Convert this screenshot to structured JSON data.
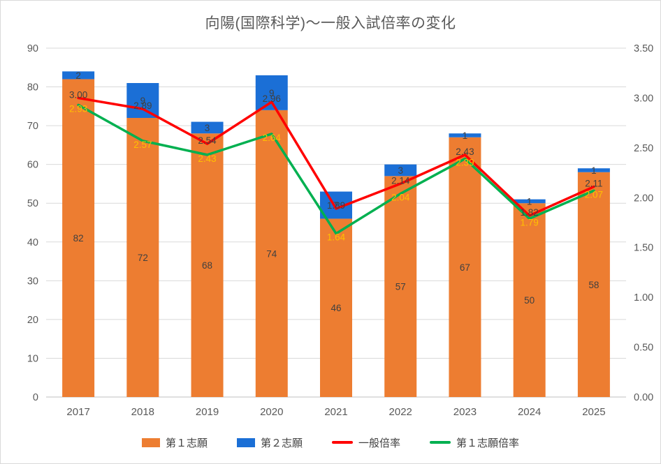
{
  "chart_data": {
    "type": "bar",
    "subtype": "stacked-bar-with-lines-combo",
    "title": "向陽(国際科学)～一般入試倍率の変化",
    "categories": [
      "2017",
      "2018",
      "2019",
      "2020",
      "2021",
      "2022",
      "2023",
      "2024",
      "2025"
    ],
    "series": [
      {
        "id": "first-choice",
        "name": "第１志願",
        "type": "bar",
        "stack": "applicants",
        "axis": "left",
        "color": "#ED7D31",
        "label_color": "#404040",
        "values": [
          82,
          72,
          68,
          74,
          46,
          57,
          67,
          50,
          58
        ]
      },
      {
        "id": "second-choice",
        "name": "第２志願",
        "type": "bar",
        "stack": "applicants",
        "axis": "left",
        "color": "#1B6FD6",
        "label_color": "#404040",
        "values": [
          2,
          9,
          3,
          9,
          7,
          3,
          1,
          1,
          1
        ]
      },
      {
        "id": "general-ratio",
        "name": "一般倍率",
        "type": "line",
        "axis": "right",
        "color": "#FF0000",
        "label_color": "#404040",
        "values": [
          3.0,
          2.89,
          2.54,
          2.96,
          1.89,
          2.14,
          2.43,
          1.82,
          2.11
        ],
        "labels": [
          "3.00",
          "2.89",
          "2.54",
          "2.96",
          "1.89",
          "2.14",
          "2.43",
          "1.82",
          "2.11"
        ]
      },
      {
        "id": "first-choice-ratio",
        "name": "第１志願倍率",
        "type": "line",
        "axis": "right",
        "color": "#00B050",
        "label_color": "#FFC000",
        "values": [
          2.93,
          2.57,
          2.43,
          2.64,
          1.64,
          2.04,
          2.39,
          1.79,
          2.07
        ],
        "labels": [
          "2.93",
          "2.57",
          "2.43",
          "2.64",
          "1.64",
          "2.04",
          "2.39",
          "1.79",
          "2.07"
        ]
      }
    ],
    "left_axis": {
      "min": 0,
      "max": 90,
      "step": 10,
      "ticks": [
        "0",
        "10",
        "20",
        "30",
        "40",
        "50",
        "60",
        "70",
        "80",
        "90"
      ]
    },
    "right_axis": {
      "min": 0,
      "max": 3.5,
      "step": 0.5,
      "ticks": [
        "0.00",
        "0.50",
        "1.00",
        "1.50",
        "2.00",
        "2.50",
        "3.00",
        "3.50"
      ]
    },
    "grid": true,
    "legend_position": "bottom",
    "colors": {
      "gridline": "#D9D9D9",
      "axis_line": "#BFBFBF",
      "axis_text": "#595959",
      "title_text": "#595959"
    }
  }
}
